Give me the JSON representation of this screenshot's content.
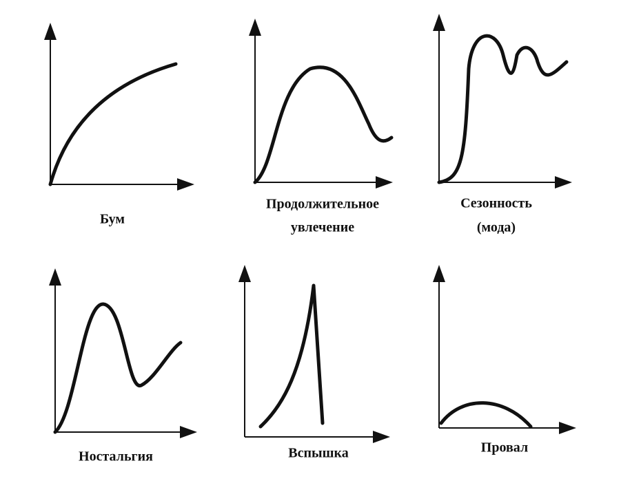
{
  "panels": [
    {
      "label": [
        "Бум"
      ]
    },
    {
      "label": [
        "Продолжительное",
        "увлечение"
      ]
    },
    {
      "label": [
        "Сезонность",
        "(мода)"
      ]
    },
    {
      "label": [
        "Ностальгия"
      ]
    },
    {
      "label": [
        "Вспышка"
      ]
    },
    {
      "label": [
        "Провал"
      ]
    }
  ]
}
